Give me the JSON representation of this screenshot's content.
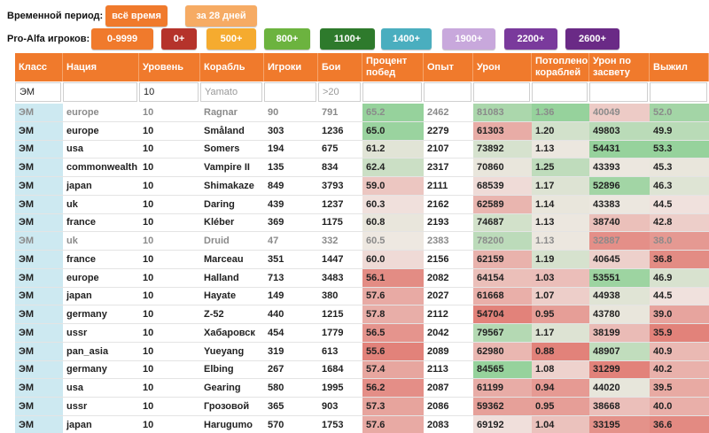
{
  "filters": {
    "period_label": "Временной период:",
    "period_options": [
      {
        "label": "всё время",
        "bg": "#f07a2c",
        "color": "#ffffff"
      },
      {
        "label": "за 28 дней",
        "bg": "#f6ab64",
        "color": "#ffffff"
      }
    ],
    "players_label": "Pro-Alfa игроков:",
    "player_options": [
      {
        "label": "0-9999",
        "bg": "#f07a2c",
        "color": "#ffffff"
      },
      {
        "label": "0+",
        "bg": "#b5332b",
        "color": "#ffffff"
      },
      {
        "label": "500+",
        "bg": "#f5ab2f",
        "color": "#ffffff"
      },
      {
        "label": "800+",
        "bg": "#6cb33f",
        "color": "#ffffff"
      },
      {
        "label": "1100+",
        "bg": "#2e7a2c",
        "color": "#ffffff"
      },
      {
        "label": "1400+",
        "bg": "#4aaebf",
        "color": "#ffffff"
      },
      {
        "label": "1900+",
        "bg": "#c8a8dc",
        "color": "#ffffff"
      },
      {
        "label": "2200+",
        "bg": "#7a3a9c",
        "color": "#ffffff"
      },
      {
        "label": "2600+",
        "bg": "#6a2a86",
        "color": "#ffffff"
      }
    ]
  },
  "table": {
    "columns": [
      {
        "key": "cls",
        "label": "Класс"
      },
      {
        "key": "nation",
        "label": "Нация"
      },
      {
        "key": "tier",
        "label": "Уровень"
      },
      {
        "key": "ship",
        "label": "Корабль"
      },
      {
        "key": "players",
        "label": "Игроки"
      },
      {
        "key": "battles",
        "label": "Бои"
      },
      {
        "key": "winrate",
        "label": "Процент побед"
      },
      {
        "key": "exp",
        "label": "Опыт"
      },
      {
        "key": "damage",
        "label": "Урон"
      },
      {
        "key": "kills",
        "label": "Потоплено кораблей"
      },
      {
        "key": "spotdmg",
        "label": "Урон по засвету"
      },
      {
        "key": "survived",
        "label": "Выжил"
      }
    ],
    "filters": {
      "cls": {
        "value": "ЭМ",
        "placeholder": ""
      },
      "nation": {
        "value": "",
        "placeholder": ""
      },
      "tier": {
        "value": "10",
        "placeholder": ""
      },
      "ship": {
        "value": "",
        "placeholder": "Yamato"
      },
      "players": {
        "value": "",
        "placeholder": ""
      },
      "battles": {
        "value": "",
        "placeholder": ">20"
      },
      "winrate": {
        "value": "",
        "placeholder": ""
      },
      "exp": {
        "value": "",
        "placeholder": ""
      },
      "damage": {
        "value": "",
        "placeholder": ""
      },
      "kills": {
        "value": "",
        "placeholder": ""
      },
      "spotdmg": {
        "value": "",
        "placeholder": ""
      },
      "survived": {
        "value": "",
        "placeholder": ""
      }
    },
    "rows": [
      {
        "muted": true,
        "cls": "ЭМ",
        "nation": "europe",
        "tier": "10",
        "ship": "Ragnar",
        "players": "90",
        "battles": "791",
        "winrate": "65.2",
        "exp": "2462",
        "damage": "81083",
        "kills": "1.36",
        "spotdmg": "40049",
        "survived": "52.0"
      },
      {
        "muted": false,
        "cls": "ЭМ",
        "nation": "europe",
        "tier": "10",
        "ship": "Småland",
        "players": "303",
        "battles": "1236",
        "winrate": "65.0",
        "exp": "2279",
        "damage": "61303",
        "kills": "1.20",
        "spotdmg": "49803",
        "survived": "49.9"
      },
      {
        "muted": false,
        "cls": "ЭМ",
        "nation": "usa",
        "tier": "10",
        "ship": "Somers",
        "players": "194",
        "battles": "675",
        "winrate": "61.2",
        "exp": "2107",
        "damage": "73892",
        "kills": "1.13",
        "spotdmg": "54431",
        "survived": "53.3"
      },
      {
        "muted": false,
        "cls": "ЭМ",
        "nation": "commonwealth",
        "tier": "10",
        "ship": "Vampire II",
        "players": "135",
        "battles": "834",
        "winrate": "62.4",
        "exp": "2317",
        "damage": "70860",
        "kills": "1.25",
        "spotdmg": "43393",
        "survived": "45.3"
      },
      {
        "muted": false,
        "cls": "ЭМ",
        "nation": "japan",
        "tier": "10",
        "ship": "Shimakaze",
        "players": "849",
        "battles": "3793",
        "winrate": "59.0",
        "exp": "2111",
        "damage": "68539",
        "kills": "1.17",
        "spotdmg": "52896",
        "survived": "46.3"
      },
      {
        "muted": false,
        "cls": "ЭМ",
        "nation": "uk",
        "tier": "10",
        "ship": "Daring",
        "players": "439",
        "battles": "1237",
        "winrate": "60.3",
        "exp": "2162",
        "damage": "62589",
        "kills": "1.14",
        "spotdmg": "43383",
        "survived": "44.5"
      },
      {
        "muted": false,
        "cls": "ЭМ",
        "nation": "france",
        "tier": "10",
        "ship": "Kléber",
        "players": "369",
        "battles": "1175",
        "winrate": "60.8",
        "exp": "2193",
        "damage": "74687",
        "kills": "1.13",
        "spotdmg": "38740",
        "survived": "42.8"
      },
      {
        "muted": true,
        "cls": "ЭМ",
        "nation": "uk",
        "tier": "10",
        "ship": "Druid",
        "players": "47",
        "battles": "332",
        "winrate": "60.5",
        "exp": "2383",
        "damage": "78200",
        "kills": "1.13",
        "spotdmg": "32887",
        "survived": "38.0"
      },
      {
        "muted": false,
        "cls": "ЭМ",
        "nation": "france",
        "tier": "10",
        "ship": "Marceau",
        "players": "351",
        "battles": "1447",
        "winrate": "60.0",
        "exp": "2156",
        "damage": "62159",
        "kills": "1.19",
        "spotdmg": "40645",
        "survived": "36.8"
      },
      {
        "muted": false,
        "cls": "ЭМ",
        "nation": "europe",
        "tier": "10",
        "ship": "Halland",
        "players": "713",
        "battles": "3483",
        "winrate": "56.1",
        "exp": "2082",
        "damage": "64154",
        "kills": "1.03",
        "spotdmg": "53551",
        "survived": "46.9"
      },
      {
        "muted": false,
        "cls": "ЭМ",
        "nation": "japan",
        "tier": "10",
        "ship": "Hayate",
        "players": "149",
        "battles": "380",
        "winrate": "57.6",
        "exp": "2027",
        "damage": "61668",
        "kills": "1.07",
        "spotdmg": "44938",
        "survived": "44.5"
      },
      {
        "muted": false,
        "cls": "ЭМ",
        "nation": "germany",
        "tier": "10",
        "ship": "Z-52",
        "players": "440",
        "battles": "1215",
        "winrate": "57.8",
        "exp": "2112",
        "damage": "54704",
        "kills": "0.95",
        "spotdmg": "43780",
        "survived": "39.0"
      },
      {
        "muted": false,
        "cls": "ЭМ",
        "nation": "ussr",
        "tier": "10",
        "ship": "Хабаровск",
        "players": "454",
        "battles": "1779",
        "winrate": "56.5",
        "exp": "2042",
        "damage": "79567",
        "kills": "1.17",
        "spotdmg": "38199",
        "survived": "35.9"
      },
      {
        "muted": false,
        "cls": "ЭМ",
        "nation": "pan_asia",
        "tier": "10",
        "ship": "Yueyang",
        "players": "319",
        "battles": "613",
        "winrate": "55.6",
        "exp": "2089",
        "damage": "62980",
        "kills": "0.88",
        "spotdmg": "48907",
        "survived": "40.9"
      },
      {
        "muted": false,
        "cls": "ЭМ",
        "nation": "germany",
        "tier": "10",
        "ship": "Elbing",
        "players": "267",
        "battles": "1684",
        "winrate": "57.4",
        "exp": "2113",
        "damage": "84565",
        "kills": "1.08",
        "spotdmg": "31299",
        "survived": "40.2"
      },
      {
        "muted": false,
        "cls": "ЭМ",
        "nation": "usa",
        "tier": "10",
        "ship": "Gearing",
        "players": "580",
        "battles": "1995",
        "winrate": "56.2",
        "exp": "2087",
        "damage": "61199",
        "kills": "0.94",
        "spotdmg": "44020",
        "survived": "39.5"
      },
      {
        "muted": false,
        "cls": "ЭМ",
        "nation": "ussr",
        "tier": "10",
        "ship": "Грозовой",
        "players": "365",
        "battles": "903",
        "winrate": "57.3",
        "exp": "2086",
        "damage": "59362",
        "kills": "0.95",
        "spotdmg": "38668",
        "survived": "40.0"
      },
      {
        "muted": false,
        "cls": "ЭМ",
        "nation": "japan",
        "tier": "10",
        "ship": "Harugumo",
        "players": "570",
        "battles": "1753",
        "winrate": "57.6",
        "exp": "2083",
        "damage": "69192",
        "kills": "1.04",
        "spotdmg": "33195",
        "survived": "36.6"
      }
    ]
  }
}
